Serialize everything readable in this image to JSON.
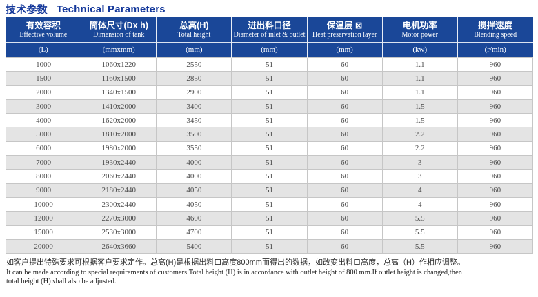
{
  "title": {
    "zh": "技术参数",
    "en": "Technical Parameters"
  },
  "table": {
    "columns": [
      {
        "zh": "有效容积",
        "en": "Effective volume",
        "unit": "(L)"
      },
      {
        "zh": "筒体尺寸(Dx h)",
        "en": "Dimension of tank",
        "unit": "(mmxmm)"
      },
      {
        "zh": "总高(H)",
        "en": "Total height",
        "unit": "(mm)"
      },
      {
        "zh": "进出料口径",
        "en": "Diameter of inlet & outlet",
        "unit": "(mm)"
      },
      {
        "zh": "保温层 ⊠",
        "en": "Heat preservation layer",
        "unit": "(mm)"
      },
      {
        "zh": "电机功率",
        "en": "Motor power",
        "unit": "(kw)"
      },
      {
        "zh": "搅拌速度",
        "en": "Blending speed",
        "unit": "(r/min)"
      }
    ],
    "rows": [
      [
        "1000",
        "1060x1220",
        "2550",
        "51",
        "60",
        "1.1",
        "960"
      ],
      [
        "1500",
        "1160x1500",
        "2850",
        "51",
        "60",
        "1.1",
        "960"
      ],
      [
        "2000",
        "1340x1500",
        "2900",
        "51",
        "60",
        "1.1",
        "960"
      ],
      [
        "3000",
        "1410x2000",
        "3400",
        "51",
        "60",
        "1.5",
        "960"
      ],
      [
        "4000",
        "1620x2000",
        "3450",
        "51",
        "60",
        "1.5",
        "960"
      ],
      [
        "5000",
        "1810x2000",
        "3500",
        "51",
        "60",
        "2.2",
        "960"
      ],
      [
        "6000",
        "1980x2000",
        "3550",
        "51",
        "60",
        "2.2",
        "960"
      ],
      [
        "7000",
        "1930x2440",
        "4000",
        "51",
        "60",
        "3",
        "960"
      ],
      [
        "8000",
        "2060x2440",
        "4000",
        "51",
        "60",
        "3",
        "960"
      ],
      [
        "9000",
        "2180x2440",
        "4050",
        "51",
        "60",
        "4",
        "960"
      ],
      [
        "10000",
        "2300x2440",
        "4050",
        "51",
        "60",
        "4",
        "960"
      ],
      [
        "12000",
        "2270x3000",
        "4600",
        "51",
        "60",
        "5.5",
        "960"
      ],
      [
        "15000",
        "2530x3000",
        "4700",
        "51",
        "60",
        "5.5",
        "960"
      ],
      [
        "20000",
        "2640x3660",
        "5400",
        "51",
        "60",
        "5.5",
        "960"
      ]
    ]
  },
  "notes": {
    "zh": "如客户提出特殊要求可根据客户要求定作。总高(H)是根据出料口高度800mm而得出的数据，如改变出料口高度，总高（H）作相应调整。",
    "en1": "It can be made according to special requirements of customers.Total height (H) is in accordance with outlet height of 800 mm.If outlet height is changed,then",
    "en2": "total height (H) shall also be adjusted."
  },
  "colors": {
    "header_bg": "#1a4798",
    "title_text": "#15399b",
    "row_alt": "#e4e4e4",
    "grid_border": "#c6c6c6",
    "body_text": "#4d4d4d"
  }
}
